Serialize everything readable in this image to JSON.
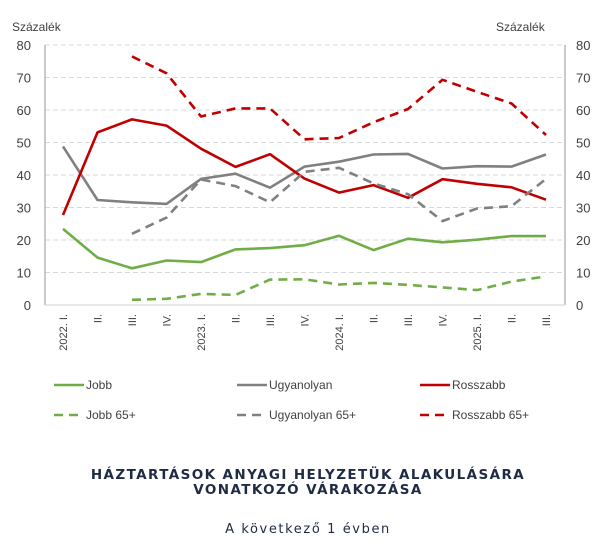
{
  "chart_data": {
    "type": "line",
    "title": "HÁZTARTÁSOK ANYAGI HELYZETÜK ALAKULÁSÁRA VONATKOZÓ VÁRAKOZÁSA",
    "title_lines": [
      "HÁZTARTÁSOK ANYAGI HELYZETÜK ALAKULÁSÁRA",
      "VONATKOZÓ VÁRAKOZÁSA"
    ],
    "subtitle": "A következő 1 évben",
    "ylabel_left": "Százalék",
    "ylabel_right": "Százalék",
    "xlabel": "",
    "ylim": [
      0,
      80
    ],
    "yticks": [
      0,
      10,
      20,
      30,
      40,
      50,
      60,
      70,
      80
    ],
    "grid": true,
    "legend_position": "bottom",
    "categories": [
      "2022. I.",
      "II.",
      "III.",
      "IV.",
      "2023. I.",
      "II.",
      "III.",
      "IV.",
      "2024. I.",
      "II.",
      "III.",
      "IV.",
      "2025. I.",
      "II.",
      "III."
    ],
    "series": [
      {
        "name": "Jobb",
        "color": "#70ad47",
        "dash": "solid",
        "values": [
          23.4,
          14.6,
          11.3,
          13.7,
          13.2,
          17.1,
          17.5,
          18.4,
          21.3,
          16.9,
          20.4,
          19.3,
          20.1,
          21.2,
          21.2
        ]
      },
      {
        "name": "Ugyanolyan",
        "color": "#808080",
        "dash": "solid",
        "values": [
          48.8,
          32.3,
          31.6,
          31.1,
          38.8,
          40.4,
          36.1,
          42.6,
          44.1,
          46.3,
          46.5,
          42.0,
          42.7,
          42.6,
          46.3
        ]
      },
      {
        "name": "Rosszabb",
        "color": "#c00000",
        "dash": "solid",
        "values": [
          27.7,
          53.1,
          57.1,
          55.2,
          48.1,
          42.5,
          46.4,
          38.9,
          34.6,
          36.9,
          33.0,
          38.7,
          37.3,
          36.2,
          32.4
        ]
      },
      {
        "name": "Jobb 65+",
        "color": "#70ad47",
        "dash": "dashed",
        "values": [
          null,
          null,
          1.6,
          1.9,
          3.4,
          3.1,
          7.8,
          7.9,
          6.3,
          6.8,
          6.2,
          5.4,
          4.6,
          7.2,
          8.8
        ]
      },
      {
        "name": "Ugyanolyan 65+",
        "color": "#808080",
        "dash": "dashed",
        "values": [
          null,
          null,
          21.9,
          26.9,
          38.6,
          36.6,
          31.6,
          41.0,
          42.2,
          37.4,
          34.1,
          25.8,
          29.7,
          30.4,
          38.8
        ]
      },
      {
        "name": "Rosszabb 65+",
        "color": "#c00000",
        "dash": "dashed",
        "values": [
          null,
          null,
          76.5,
          71.3,
          58.0,
          60.5,
          60.5,
          51.0,
          51.4,
          56.2,
          60.3,
          69.3,
          65.6,
          62.0,
          52.3
        ]
      }
    ],
    "legend_order": [
      "Jobb",
      "Ugyanolyan",
      "Rosszabb",
      "Jobb 65+",
      "Ugyanolyan 65+",
      "Rosszabb 65+"
    ]
  }
}
